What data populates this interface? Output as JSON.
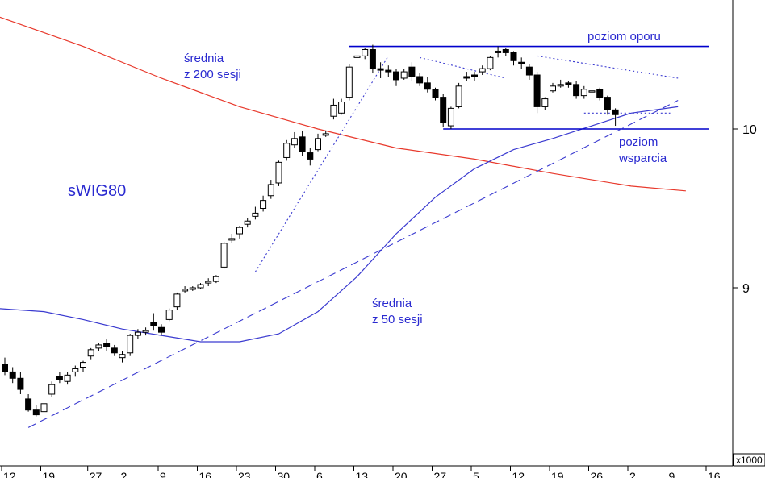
{
  "chart_data": {
    "type": "candlestick",
    "title": "",
    "series_name": "sWIG80",
    "y_tick_labels": [
      "10",
      "9"
    ],
    "y_tick_values": [
      10,
      9
    ],
    "y_unit_label": "x1000",
    "x_tick_labels": [
      "12",
      "19",
      "27",
      "2",
      "9",
      "16",
      "23",
      "30",
      "6",
      "13",
      "20",
      "27",
      "5",
      "12",
      "19",
      "26",
      "2",
      "9",
      "16"
    ],
    "x_tick_sessions": [
      0,
      5,
      11,
      15,
      20,
      25,
      30,
      35,
      40,
      45,
      50,
      55,
      60,
      65,
      70,
      75,
      80,
      85,
      90
    ],
    "ylim": [
      8.0,
      10.8
    ],
    "xlim": [
      0,
      93
    ],
    "candles": [
      [
        0,
        8.52,
        8.56,
        8.45,
        8.47
      ],
      [
        1,
        8.47,
        8.5,
        8.4,
        8.43
      ],
      [
        2,
        8.43,
        8.47,
        8.33,
        8.36
      ],
      [
        3,
        8.3,
        8.33,
        8.22,
        8.23
      ],
      [
        4,
        8.23,
        8.26,
        8.19,
        8.2
      ],
      [
        5,
        8.22,
        8.29,
        8.2,
        8.27
      ],
      [
        6,
        8.33,
        8.41,
        8.31,
        8.39
      ],
      [
        7,
        8.44,
        8.47,
        8.4,
        8.42
      ],
      [
        8,
        8.41,
        8.47,
        8.39,
        8.45
      ],
      [
        9,
        8.47,
        8.51,
        8.44,
        8.49
      ],
      [
        10,
        8.5,
        8.54,
        8.47,
        8.53
      ],
      [
        11,
        8.57,
        8.62,
        8.55,
        8.61
      ],
      [
        12,
        8.62,
        8.65,
        8.6,
        8.64
      ],
      [
        13,
        8.65,
        8.68,
        8.6,
        8.63
      ],
      [
        14,
        8.62,
        8.64,
        8.57,
        8.59
      ],
      [
        15,
        8.56,
        8.6,
        8.53,
        8.58
      ],
      [
        16,
        8.59,
        8.71,
        8.57,
        8.7
      ],
      [
        17,
        8.7,
        8.74,
        8.68,
        8.72
      ],
      [
        18,
        8.72,
        8.75,
        8.7,
        8.73
      ],
      [
        19,
        8.78,
        8.84,
        8.73,
        8.76
      ],
      [
        20,
        8.75,
        8.77,
        8.7,
        8.72
      ],
      [
        21,
        8.8,
        8.87,
        8.79,
        8.86
      ],
      [
        22,
        8.88,
        8.97,
        8.86,
        8.96
      ],
      [
        23,
        8.98,
        9.01,
        8.97,
        8.99
      ],
      [
        24,
        8.99,
        9.01,
        8.98,
        9.0
      ],
      [
        25,
        9.0,
        9.03,
        8.99,
        9.02
      ],
      [
        26,
        9.03,
        9.06,
        9.01,
        9.04
      ],
      [
        27,
        9.04,
        9.08,
        9.03,
        9.07
      ],
      [
        28,
        9.13,
        9.29,
        9.12,
        9.28
      ],
      [
        29,
        9.3,
        9.34,
        9.28,
        9.31
      ],
      [
        30,
        9.34,
        9.39,
        9.31,
        9.38
      ],
      [
        31,
        9.4,
        9.44,
        9.38,
        9.42
      ],
      [
        32,
        9.45,
        9.51,
        9.43,
        9.47
      ],
      [
        33,
        9.5,
        9.58,
        9.48,
        9.55
      ],
      [
        34,
        9.58,
        9.68,
        9.56,
        9.65
      ],
      [
        35,
        9.66,
        9.8,
        9.64,
        9.79
      ],
      [
        36,
        9.82,
        9.93,
        9.8,
        9.91
      ],
      [
        37,
        9.9,
        9.98,
        9.88,
        9.94
      ],
      [
        38,
        9.95,
        9.99,
        9.83,
        9.86
      ],
      [
        39,
        9.85,
        9.88,
        9.77,
        9.81
      ],
      [
        40,
        9.87,
        9.97,
        9.86,
        9.94
      ],
      [
        41,
        9.96,
        9.99,
        9.95,
        9.97
      ],
      [
        42,
        10.08,
        10.19,
        10.06,
        10.15
      ],
      [
        43,
        10.1,
        10.19,
        10.09,
        10.17
      ],
      [
        44,
        10.2,
        10.41,
        10.18,
        10.39
      ],
      [
        45,
        10.45,
        10.48,
        10.43,
        10.46
      ],
      [
        46,
        10.46,
        10.51,
        10.44,
        10.5
      ],
      [
        47,
        10.5,
        10.53,
        10.35,
        10.38
      ],
      [
        48,
        10.38,
        10.42,
        10.32,
        10.37
      ],
      [
        49,
        10.37,
        10.4,
        10.33,
        10.36
      ],
      [
        50,
        10.36,
        10.38,
        10.27,
        10.31
      ],
      [
        51,
        10.32,
        10.38,
        10.31,
        10.36
      ],
      [
        52,
        10.39,
        10.42,
        10.3,
        10.33
      ],
      [
        53,
        10.33,
        10.35,
        10.27,
        10.29
      ],
      [
        54,
        10.29,
        10.33,
        10.23,
        10.25
      ],
      [
        55,
        10.25,
        10.26,
        10.18,
        10.2
      ],
      [
        56,
        10.2,
        10.22,
        10.01,
        10.04
      ],
      [
        57,
        10.02,
        10.14,
        10.0,
        10.13
      ],
      [
        58,
        10.14,
        10.29,
        10.13,
        10.27
      ],
      [
        59,
        10.33,
        10.36,
        10.3,
        10.32
      ],
      [
        60,
        10.34,
        10.36,
        10.3,
        10.33
      ],
      [
        61,
        10.36,
        10.4,
        10.34,
        10.38
      ],
      [
        62,
        10.38,
        10.46,
        10.37,
        10.45
      ],
      [
        63,
        10.48,
        10.52,
        10.45,
        10.49
      ],
      [
        64,
        10.5,
        10.51,
        10.46,
        10.48
      ],
      [
        65,
        10.48,
        10.49,
        10.4,
        10.43
      ],
      [
        66,
        10.42,
        10.45,
        10.38,
        10.41
      ],
      [
        67,
        10.39,
        10.41,
        10.31,
        10.34
      ],
      [
        68,
        10.34,
        10.36,
        10.1,
        10.14
      ],
      [
        69,
        10.14,
        10.2,
        10.12,
        10.19
      ],
      [
        70,
        10.24,
        10.29,
        10.23,
        10.27
      ],
      [
        71,
        10.27,
        10.31,
        10.26,
        10.28
      ],
      [
        72,
        10.29,
        10.3,
        10.26,
        10.28
      ],
      [
        73,
        10.28,
        10.3,
        10.19,
        10.21
      ],
      [
        74,
        10.21,
        10.27,
        10.19,
        10.25
      ],
      [
        75,
        10.24,
        10.26,
        10.22,
        10.24
      ],
      [
        76,
        10.25,
        10.26,
        10.18,
        10.2
      ],
      [
        77,
        10.2,
        10.21,
        10.09,
        10.12
      ],
      [
        78,
        10.12,
        10.13,
        10.02,
        10.09
      ]
    ],
    "moving_averages": [
      {
        "name": "średnia z 200 sesji",
        "label_line1": "średnia",
        "label_line2": "z 200 sesji",
        "color": "#e8392c",
        "points": [
          [
            -1,
            10.71
          ],
          [
            10,
            10.52
          ],
          [
            20,
            10.32
          ],
          [
            30,
            10.14
          ],
          [
            40,
            10.0
          ],
          [
            50,
            9.88
          ],
          [
            60,
            9.81
          ],
          [
            70,
            9.72
          ],
          [
            80,
            9.64
          ],
          [
            87,
            9.61
          ]
        ]
      },
      {
        "name": "średnia z 50 sesji",
        "label_line1": "średnia",
        "label_line2": "z 50 sesji",
        "color": "#3a3ad0",
        "points": [
          [
            -1,
            8.87
          ],
          [
            5,
            8.85
          ],
          [
            10,
            8.8
          ],
          [
            15,
            8.74
          ],
          [
            20,
            8.7
          ],
          [
            25,
            8.66
          ],
          [
            30,
            8.66
          ],
          [
            35,
            8.71
          ],
          [
            40,
            8.85
          ],
          [
            45,
            9.07
          ],
          [
            50,
            9.34
          ],
          [
            55,
            9.57
          ],
          [
            60,
            9.75
          ],
          [
            65,
            9.87
          ],
          [
            70,
            9.94
          ],
          [
            75,
            10.02
          ],
          [
            80,
            10.1
          ],
          [
            86,
            10.14
          ]
        ]
      }
    ],
    "levels": [
      {
        "label": "poziom oporu",
        "y": 10.52,
        "x1": 44,
        "x2": 90,
        "color": "#0000cc"
      },
      {
        "label_line1": "poziom",
        "label_line2": "wsparcia",
        "y": 10.0,
        "x1": 56,
        "x2": 90,
        "color": "#0000cc"
      }
    ],
    "trend_lines": [
      {
        "style": "dashed",
        "color": "#3a3ad0",
        "from": [
          3,
          8.12
        ],
        "to": [
          86,
          10.18
        ]
      },
      {
        "style": "dotted",
        "color": "#3a3ad0",
        "from": [
          32,
          9.1
        ],
        "to": [
          49,
          10.46
        ]
      },
      {
        "style": "dotted",
        "color": "#3a3ad0",
        "from": [
          53,
          10.45
        ],
        "to": [
          64,
          10.32
        ]
      },
      {
        "style": "dotted",
        "color": "#3a3ad0",
        "from": [
          68,
          10.46
        ],
        "to": [
          86,
          10.32
        ]
      },
      {
        "style": "dotted",
        "color": "#3a3ad0",
        "from": [
          74,
          10.1
        ],
        "to": [
          85,
          10.1
        ]
      }
    ]
  }
}
